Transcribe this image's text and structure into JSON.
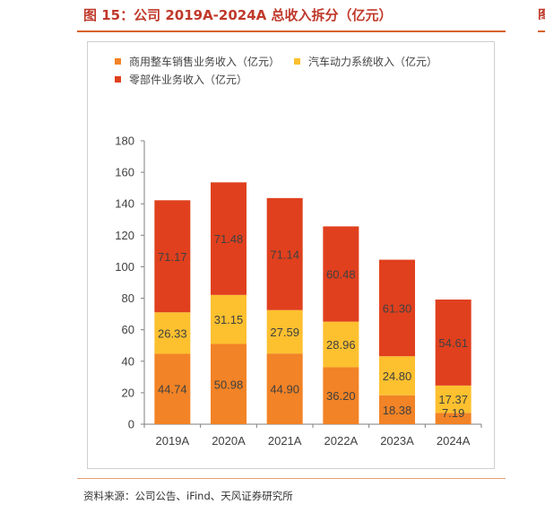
{
  "figure_title": "图 15：公司 2019A-2024A 总收入拆分（亿元）",
  "source_text": "资料来源：公司公告、iFind、天风证券研究所",
  "colors": {
    "series0": "#F28326",
    "series1": "#FDC02F",
    "series2": "#E0401E",
    "axis": "#7f7f7f",
    "label": "#404040"
  },
  "chart_data": {
    "type": "bar",
    "stacked": true,
    "title": "",
    "xlabel": "",
    "ylabel": "",
    "categories": [
      "2019A",
      "2020A",
      "2021A",
      "2022A",
      "2023A",
      "2024A"
    ],
    "ylim": [
      0,
      180
    ],
    "yticks": [
      0,
      20,
      40,
      60,
      80,
      100,
      120,
      140,
      160,
      180
    ],
    "grid": false,
    "legend_position": "top-left",
    "series": [
      {
        "name": "商用整车销售业务收入（亿元）",
        "values": [
          44.74,
          50.98,
          44.9,
          36.2,
          18.38,
          7.19
        ],
        "labels": [
          "44.74",
          "50.98",
          "44.90",
          "36.20",
          "18.38",
          "7.19"
        ]
      },
      {
        "name": "汽车动力系统收入（亿元）",
        "values": [
          26.33,
          31.15,
          27.59,
          28.96,
          24.8,
          17.37
        ],
        "labels": [
          "26.33",
          "31.15",
          "27.59",
          "28.96",
          "24.80",
          "17.37"
        ]
      },
      {
        "name": "零部件业务收入（亿元）",
        "values": [
          71.17,
          71.48,
          71.14,
          60.48,
          61.3,
          54.61
        ],
        "labels": [
          "71.17",
          "71.48",
          "71.14",
          "60.48",
          "61.30",
          "54.61"
        ]
      }
    ]
  },
  "edge_fragment": {
    "title_char": "图",
    "source_char": "资"
  }
}
